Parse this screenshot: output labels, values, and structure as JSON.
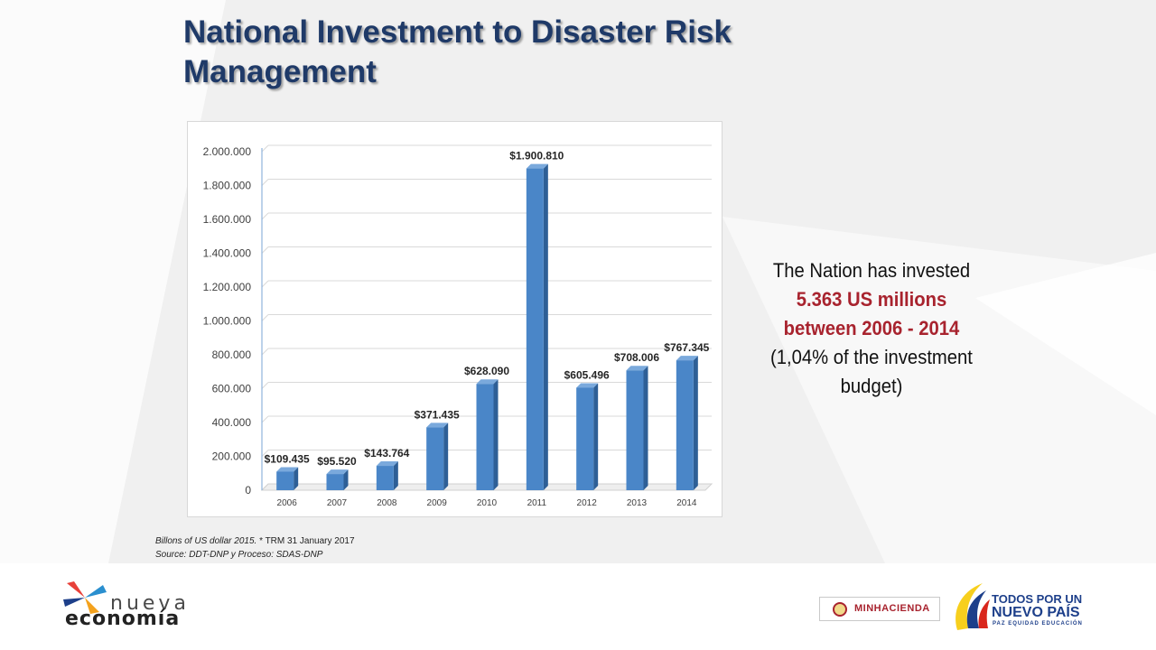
{
  "slide": {
    "title": "National Investment to Disaster Risk Management",
    "callout": {
      "line1": "The Nation has invested",
      "highlight1": "5.363 US millions",
      "highlight2": "between 2006 - 2014",
      "line2": "(1,04% of the investment",
      "line3": "budget)"
    },
    "footnote": {
      "units": "Billons of US dollar  2015.",
      "trm": " * TRM 31 January 2017",
      "source": "Source: DDT-DNP y  Proceso: SDAS-DNP"
    }
  },
  "logos": {
    "nueva_top": "nueva",
    "nueva_bottom": "economía",
    "minhacienda": "MINHACIENDA",
    "tpnp_line1": "TODOS POR UN",
    "tpnp_line2": "NUEVO PAÍS",
    "tpnp_line3": "PAZ  EQUIDAD  EDUCACIÓN"
  },
  "colors": {
    "title": "#1f3a68",
    "bar": "#4a86c8",
    "highlight": "#a8232e"
  },
  "chart_data": {
    "type": "bar",
    "style": "3d-column",
    "categories": [
      "2006",
      "2007",
      "2008",
      "2009",
      "2010",
      "2011",
      "2012",
      "2013",
      "2014"
    ],
    "values": [
      109435,
      95520,
      143764,
      371435,
      628090,
      1900810,
      605496,
      708006,
      767345
    ],
    "data_labels": [
      "$109.435",
      "$95.520",
      "$143.764",
      "$371.435",
      "$628.090",
      "$1.900.810",
      "$605.496",
      "$708.006",
      "$767.345"
    ],
    "y_ticks": [
      0,
      200000,
      400000,
      600000,
      800000,
      1000000,
      1200000,
      1400000,
      1600000,
      1800000,
      2000000
    ],
    "y_tick_labels": [
      "0",
      "200.000",
      "400.000",
      "600.000",
      "800.000",
      "1.000.000",
      "1.200.000",
      "1.400.000",
      "1.600.000",
      "1.800.000",
      "2.000.000"
    ],
    "ylim": [
      0,
      2000000
    ],
    "grid": true,
    "legend": "none"
  }
}
